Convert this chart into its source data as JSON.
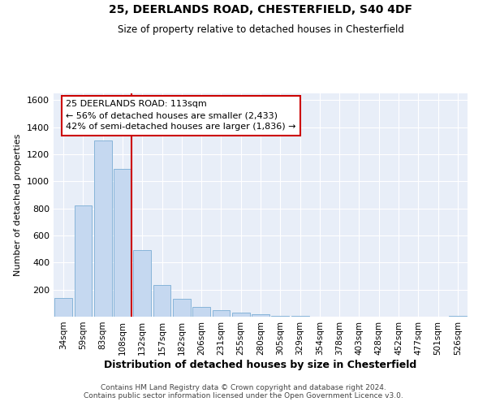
{
  "title1": "25, DEERLANDS ROAD, CHESTERFIELD, S40 4DF",
  "title2": "Size of property relative to detached houses in Chesterfield",
  "xlabel": "Distribution of detached houses by size in Chesterfield",
  "ylabel": "Number of detached properties",
  "bar_color": "#c5d8f0",
  "bar_edge_color": "#7aadd4",
  "background_color": "#e8eef8",
  "grid_color": "#ffffff",
  "categories": [
    "34sqm",
    "59sqm",
    "83sqm",
    "108sqm",
    "132sqm",
    "157sqm",
    "182sqm",
    "206sqm",
    "231sqm",
    "255sqm",
    "280sqm",
    "305sqm",
    "329sqm",
    "354sqm",
    "378sqm",
    "403sqm",
    "428sqm",
    "452sqm",
    "477sqm",
    "501sqm",
    "526sqm"
  ],
  "values": [
    140,
    820,
    1300,
    1090,
    490,
    235,
    130,
    75,
    50,
    30,
    20,
    8,
    8,
    0,
    0,
    0,
    0,
    0,
    0,
    0,
    8
  ],
  "red_line_color": "#cc0000",
  "red_line_x": 3.45,
  "annotation_text": "25 DEERLANDS ROAD: 113sqm\n← 56% of detached houses are smaller (2,433)\n42% of semi-detached houses are larger (1,836) →",
  "annotation_box_facecolor": "#ffffff",
  "annotation_box_edgecolor": "#cc0000",
  "footer1": "Contains HM Land Registry data © Crown copyright and database right 2024.",
  "footer2": "Contains public sector information licensed under the Open Government Licence v3.0.",
  "ylim": [
    0,
    1650
  ],
  "yticks": [
    0,
    200,
    400,
    600,
    800,
    1000,
    1200,
    1400,
    1600
  ]
}
